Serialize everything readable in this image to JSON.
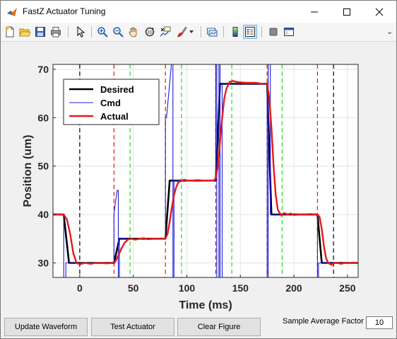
{
  "window": {
    "title": "FastZ Actuator Tuning"
  },
  "toolbar": {
    "icons": [
      "new-file-icon",
      "open-folder-icon",
      "save-icon",
      "print-icon",
      "pointer-icon",
      "zoom-in-icon",
      "zoom-out-icon",
      "pan-hand-icon",
      "rotate-3d-icon",
      "data-cursor-icon",
      "brush-icon",
      "link-plot-icon",
      "colorbar-icon",
      "legend-icon",
      "hide-plot-tools-icon",
      "show-plot-tools-icon"
    ],
    "overflow_glyph": "⌄"
  },
  "chart_data": {
    "type": "line",
    "xlabel": "Time (ms)",
    "ylabel": "Position (um)",
    "xlim": [
      -25,
      260
    ],
    "ylim": [
      27,
      71
    ],
    "xticks": [
      0,
      50,
      100,
      150,
      200,
      250
    ],
    "yticks": [
      30,
      40,
      50,
      60,
      70
    ],
    "grid": true,
    "legend_position": "top-left",
    "series": [
      {
        "name": "Desired",
        "color": "#000000",
        "x": [
          -25,
          -15,
          -10,
          32,
          37,
          80,
          84,
          127,
          131,
          175,
          179,
          222,
          226,
          260
        ],
        "y": [
          40,
          40,
          30,
          30,
          35,
          35,
          47,
          47,
          67,
          67,
          40,
          40,
          30,
          30
        ]
      },
      {
        "name": "Cmd",
        "color": "#1f1fd6",
        "x": [
          -25,
          -16,
          -15,
          -15,
          -13,
          -13,
          -10,
          -10,
          32,
          32,
          33,
          35,
          36,
          36,
          37,
          37,
          80,
          80,
          81,
          86,
          87,
          87,
          88,
          88,
          127,
          127,
          128,
          128,
          130,
          130,
          131,
          131,
          133,
          133,
          175,
          175,
          176,
          176,
          178,
          178,
          222,
          222,
          223,
          223,
          226,
          226,
          260
        ],
        "y": [
          40,
          40,
          40,
          20,
          20,
          30,
          30,
          30,
          30,
          40,
          42,
          45,
          45,
          20,
          20,
          35,
          35,
          60,
          60,
          72,
          72,
          20,
          20,
          47,
          47,
          75,
          75,
          20,
          20,
          75,
          75,
          20,
          20,
          67,
          67,
          20,
          20,
          75,
          75,
          40,
          40,
          20,
          20,
          30,
          30,
          30,
          30
        ]
      },
      {
        "name": "Actual",
        "color": "#e31a1c",
        "x": [
          -25,
          -20,
          -15,
          -12,
          -9,
          -6,
          -3,
          0,
          5,
          10,
          15,
          20,
          25,
          30,
          33,
          36,
          39,
          42,
          45,
          48,
          52,
          56,
          60,
          64,
          68,
          72,
          76,
          80,
          82,
          84,
          86,
          88,
          90,
          92,
          95,
          98,
          100,
          105,
          110,
          115,
          120,
          125,
          127,
          129,
          131,
          133,
          135,
          137,
          140,
          143,
          146,
          150,
          155,
          160,
          165,
          170,
          175,
          177,
          179,
          181,
          183,
          185,
          188,
          191,
          194,
          197,
          200,
          205,
          210,
          215,
          220,
          222,
          224,
          226,
          228,
          230,
          232,
          235,
          238,
          241,
          244,
          247,
          250,
          255,
          260
        ],
        "y": [
          40,
          40,
          40,
          39,
          36,
          32,
          30,
          29.7,
          30,
          29.8,
          30,
          30,
          29.9,
          30,
          30.2,
          31.5,
          33,
          34.2,
          34.8,
          35,
          34.8,
          35,
          35.1,
          34.9,
          35,
          35,
          35,
          35,
          36,
          38.5,
          41.5,
          44,
          45.6,
          46.6,
          47,
          47.2,
          47,
          47,
          47.1,
          47,
          47,
          47,
          47.5,
          50,
          55,
          60,
          64,
          66,
          67.4,
          67.6,
          67.4,
          67.3,
          67.2,
          67.2,
          67.2,
          67,
          67,
          64,
          58,
          50,
          44,
          41,
          39.8,
          40.3,
          40,
          40.2,
          39.9,
          40,
          40,
          40.1,
          40,
          40,
          39.5,
          37,
          33.5,
          31,
          30,
          29.6,
          30,
          30,
          29.8,
          30,
          30,
          30,
          30
        ]
      }
    ],
    "lines": [
      {
        "type": "black",
        "color": "#000000",
        "x": [
          0,
          237
        ]
      },
      {
        "type": "red",
        "color": "#e31a1c",
        "x": [
          32,
          80,
          127,
          175,
          222
        ]
      },
      {
        "type": "green",
        "color": "#22dd22",
        "x": [
          47,
          95,
          142,
          189
        ]
      }
    ]
  },
  "buttons": {
    "update_waveform": "Update Waveform",
    "test_actuator": "Test Actuator",
    "clear_figure": "Clear Figure"
  },
  "sample_avg": {
    "label": "Sample Average Factor",
    "value": "10"
  }
}
